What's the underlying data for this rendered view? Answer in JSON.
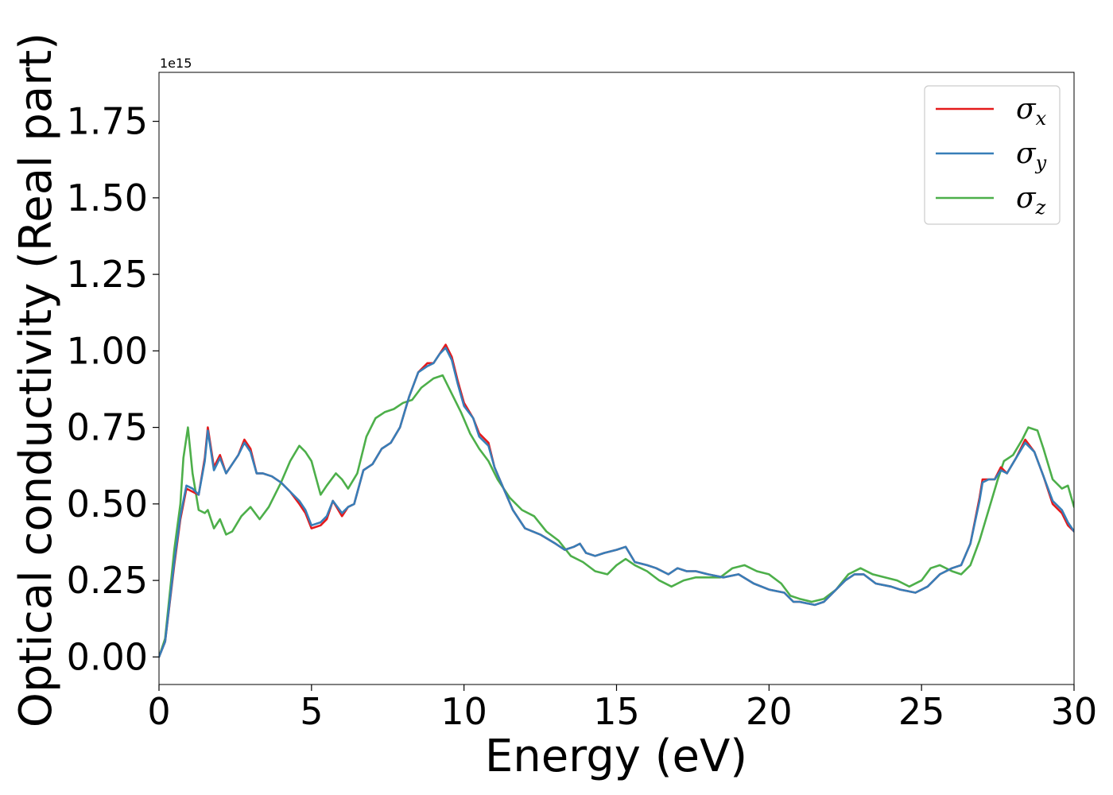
{
  "chart_data": {
    "type": "line",
    "xlabel": "Energy (eV)",
    "ylabel": "Optical conductivity (Real part)",
    "y_offset_text": "1e15",
    "y_scale": 1000000000000000.0,
    "xlim": [
      0,
      30
    ],
    "ylim": [
      -0.09,
      1.91
    ],
    "x_ticks": [
      0,
      5,
      10,
      15,
      20,
      25,
      30
    ],
    "x_tick_labels": [
      "0",
      "5",
      "10",
      "15",
      "20",
      "25",
      "30"
    ],
    "y_ticks": [
      0.0,
      0.25,
      0.5,
      0.75,
      1.0,
      1.25,
      1.5,
      1.75
    ],
    "y_tick_labels": [
      "0.00",
      "0.25",
      "0.50",
      "0.75",
      "1.00",
      "1.25",
      "1.50",
      "1.75"
    ],
    "grid": false,
    "legend_position": "top-right",
    "series": [
      {
        "name": "σx",
        "legend_main": "σ",
        "legend_sub": "x",
        "color": "#e41a1c",
        "points": [
          [
            0,
            0.0
          ],
          [
            0.2,
            0.05
          ],
          [
            0.5,
            0.3
          ],
          [
            0.7,
            0.45
          ],
          [
            0.9,
            0.55
          ],
          [
            1.1,
            0.54
          ],
          [
            1.3,
            0.53
          ],
          [
            1.5,
            0.65
          ],
          [
            1.6,
            0.75
          ],
          [
            1.8,
            0.62
          ],
          [
            2.0,
            0.66
          ],
          [
            2.2,
            0.6
          ],
          [
            2.4,
            0.63
          ],
          [
            2.6,
            0.66
          ],
          [
            2.8,
            0.71
          ],
          [
            3.0,
            0.68
          ],
          [
            3.2,
            0.6
          ],
          [
            3.4,
            0.6
          ],
          [
            3.7,
            0.59
          ],
          [
            4.0,
            0.57
          ],
          [
            4.3,
            0.54
          ],
          [
            4.6,
            0.5
          ],
          [
            4.8,
            0.47
          ],
          [
            5.0,
            0.42
          ],
          [
            5.3,
            0.43
          ],
          [
            5.5,
            0.45
          ],
          [
            5.7,
            0.51
          ],
          [
            6.0,
            0.46
          ],
          [
            6.2,
            0.49
          ],
          [
            6.4,
            0.5
          ],
          [
            6.7,
            0.61
          ],
          [
            7.0,
            0.63
          ],
          [
            7.3,
            0.68
          ],
          [
            7.6,
            0.7
          ],
          [
            7.9,
            0.75
          ],
          [
            8.2,
            0.85
          ],
          [
            8.5,
            0.93
          ],
          [
            8.8,
            0.96
          ],
          [
            9.0,
            0.96
          ],
          [
            9.2,
            0.99
          ],
          [
            9.4,
            1.02
          ],
          [
            9.6,
            0.98
          ],
          [
            9.8,
            0.9
          ],
          [
            10.0,
            0.83
          ],
          [
            10.3,
            0.78
          ],
          [
            10.5,
            0.73
          ],
          [
            10.8,
            0.7
          ],
          [
            11.0,
            0.62
          ],
          [
            11.3,
            0.55
          ],
          [
            11.6,
            0.48
          ],
          [
            12.0,
            0.42
          ],
          [
            12.5,
            0.4
          ],
          [
            13.0,
            0.37
          ],
          [
            13.3,
            0.35
          ],
          [
            13.6,
            0.36
          ],
          [
            13.8,
            0.37
          ],
          [
            14.0,
            0.34
          ],
          [
            14.3,
            0.33
          ],
          [
            14.6,
            0.34
          ],
          [
            15.0,
            0.35
          ],
          [
            15.3,
            0.36
          ],
          [
            15.6,
            0.31
          ],
          [
            16.0,
            0.3
          ],
          [
            16.3,
            0.29
          ],
          [
            16.7,
            0.27
          ],
          [
            17.0,
            0.29
          ],
          [
            17.3,
            0.28
          ],
          [
            17.6,
            0.28
          ],
          [
            18.0,
            0.27
          ],
          [
            18.5,
            0.26
          ],
          [
            19.0,
            0.27
          ],
          [
            19.5,
            0.24
          ],
          [
            20.0,
            0.22
          ],
          [
            20.5,
            0.21
          ],
          [
            20.8,
            0.18
          ],
          [
            21.0,
            0.18
          ],
          [
            21.5,
            0.17
          ],
          [
            21.8,
            0.18
          ],
          [
            22.2,
            0.22
          ],
          [
            22.5,
            0.25
          ],
          [
            22.8,
            0.27
          ],
          [
            23.1,
            0.27
          ],
          [
            23.5,
            0.24
          ],
          [
            24.0,
            0.23
          ],
          [
            24.3,
            0.22
          ],
          [
            24.8,
            0.21
          ],
          [
            25.2,
            0.23
          ],
          [
            25.6,
            0.27
          ],
          [
            26.0,
            0.29
          ],
          [
            26.3,
            0.3
          ],
          [
            26.6,
            0.37
          ],
          [
            26.9,
            0.52
          ],
          [
            27.0,
            0.58
          ],
          [
            27.2,
            0.58
          ],
          [
            27.4,
            0.58
          ],
          [
            27.6,
            0.62
          ],
          [
            27.8,
            0.6
          ],
          [
            28.1,
            0.65
          ],
          [
            28.4,
            0.71
          ],
          [
            28.7,
            0.67
          ],
          [
            29.0,
            0.59
          ],
          [
            29.3,
            0.5
          ],
          [
            29.6,
            0.47
          ],
          [
            29.8,
            0.43
          ],
          [
            30.0,
            0.41
          ]
        ]
      },
      {
        "name": "σy",
        "legend_main": "σ",
        "legend_sub": "y",
        "color": "#377eb8",
        "points": [
          [
            0,
            0.0
          ],
          [
            0.2,
            0.05
          ],
          [
            0.5,
            0.31
          ],
          [
            0.7,
            0.46
          ],
          [
            0.9,
            0.56
          ],
          [
            1.1,
            0.55
          ],
          [
            1.3,
            0.53
          ],
          [
            1.5,
            0.64
          ],
          [
            1.6,
            0.74
          ],
          [
            1.8,
            0.61
          ],
          [
            2.0,
            0.65
          ],
          [
            2.2,
            0.6
          ],
          [
            2.4,
            0.63
          ],
          [
            2.6,
            0.66
          ],
          [
            2.8,
            0.7
          ],
          [
            3.0,
            0.67
          ],
          [
            3.2,
            0.6
          ],
          [
            3.4,
            0.6
          ],
          [
            3.7,
            0.59
          ],
          [
            4.0,
            0.57
          ],
          [
            4.3,
            0.54
          ],
          [
            4.6,
            0.51
          ],
          [
            4.8,
            0.48
          ],
          [
            5.0,
            0.43
          ],
          [
            5.3,
            0.44
          ],
          [
            5.5,
            0.46
          ],
          [
            5.7,
            0.51
          ],
          [
            6.0,
            0.47
          ],
          [
            6.2,
            0.49
          ],
          [
            6.4,
            0.5
          ],
          [
            6.7,
            0.61
          ],
          [
            7.0,
            0.63
          ],
          [
            7.3,
            0.68
          ],
          [
            7.6,
            0.7
          ],
          [
            7.9,
            0.75
          ],
          [
            8.2,
            0.85
          ],
          [
            8.5,
            0.93
          ],
          [
            8.8,
            0.95
          ],
          [
            9.0,
            0.96
          ],
          [
            9.2,
            0.99
          ],
          [
            9.4,
            1.01
          ],
          [
            9.6,
            0.97
          ],
          [
            9.8,
            0.89
          ],
          [
            10.0,
            0.82
          ],
          [
            10.3,
            0.78
          ],
          [
            10.5,
            0.72
          ],
          [
            10.8,
            0.69
          ],
          [
            11.0,
            0.62
          ],
          [
            11.3,
            0.55
          ],
          [
            11.6,
            0.48
          ],
          [
            12.0,
            0.42
          ],
          [
            12.5,
            0.4
          ],
          [
            13.0,
            0.37
          ],
          [
            13.3,
            0.35
          ],
          [
            13.6,
            0.36
          ],
          [
            13.8,
            0.37
          ],
          [
            14.0,
            0.34
          ],
          [
            14.3,
            0.33
          ],
          [
            14.6,
            0.34
          ],
          [
            15.0,
            0.35
          ],
          [
            15.3,
            0.36
          ],
          [
            15.6,
            0.31
          ],
          [
            16.0,
            0.3
          ],
          [
            16.3,
            0.29
          ],
          [
            16.7,
            0.27
          ],
          [
            17.0,
            0.29
          ],
          [
            17.3,
            0.28
          ],
          [
            17.6,
            0.28
          ],
          [
            18.0,
            0.27
          ],
          [
            18.5,
            0.26
          ],
          [
            19.0,
            0.27
          ],
          [
            19.5,
            0.24
          ],
          [
            20.0,
            0.22
          ],
          [
            20.5,
            0.21
          ],
          [
            20.8,
            0.18
          ],
          [
            21.0,
            0.18
          ],
          [
            21.5,
            0.17
          ],
          [
            21.8,
            0.18
          ],
          [
            22.2,
            0.22
          ],
          [
            22.5,
            0.25
          ],
          [
            22.8,
            0.27
          ],
          [
            23.1,
            0.27
          ],
          [
            23.5,
            0.24
          ],
          [
            24.0,
            0.23
          ],
          [
            24.3,
            0.22
          ],
          [
            24.8,
            0.21
          ],
          [
            25.2,
            0.23
          ],
          [
            25.6,
            0.27
          ],
          [
            26.0,
            0.29
          ],
          [
            26.3,
            0.3
          ],
          [
            26.6,
            0.37
          ],
          [
            26.9,
            0.51
          ],
          [
            27.0,
            0.57
          ],
          [
            27.2,
            0.58
          ],
          [
            27.4,
            0.58
          ],
          [
            27.6,
            0.61
          ],
          [
            27.8,
            0.6
          ],
          [
            28.1,
            0.65
          ],
          [
            28.4,
            0.7
          ],
          [
            28.7,
            0.67
          ],
          [
            29.0,
            0.59
          ],
          [
            29.3,
            0.51
          ],
          [
            29.6,
            0.48
          ],
          [
            29.8,
            0.44
          ],
          [
            30.0,
            0.41
          ]
        ]
      },
      {
        "name": "σz",
        "legend_main": "σ",
        "legend_sub": "z",
        "color": "#4daf4a",
        "points": [
          [
            0,
            0.0
          ],
          [
            0.2,
            0.06
          ],
          [
            0.5,
            0.35
          ],
          [
            0.7,
            0.5
          ],
          [
            0.8,
            0.65
          ],
          [
            0.95,
            0.75
          ],
          [
            1.1,
            0.6
          ],
          [
            1.3,
            0.48
          ],
          [
            1.5,
            0.47
          ],
          [
            1.6,
            0.48
          ],
          [
            1.8,
            0.42
          ],
          [
            2.0,
            0.45
          ],
          [
            2.2,
            0.4
          ],
          [
            2.4,
            0.41
          ],
          [
            2.7,
            0.46
          ],
          [
            3.0,
            0.49
          ],
          [
            3.3,
            0.45
          ],
          [
            3.6,
            0.49
          ],
          [
            4.0,
            0.57
          ],
          [
            4.3,
            0.64
          ],
          [
            4.6,
            0.69
          ],
          [
            4.8,
            0.67
          ],
          [
            5.0,
            0.64
          ],
          [
            5.3,
            0.53
          ],
          [
            5.5,
            0.56
          ],
          [
            5.8,
            0.6
          ],
          [
            6.0,
            0.58
          ],
          [
            6.2,
            0.55
          ],
          [
            6.5,
            0.6
          ],
          [
            6.8,
            0.72
          ],
          [
            7.1,
            0.78
          ],
          [
            7.4,
            0.8
          ],
          [
            7.7,
            0.81
          ],
          [
            8.0,
            0.83
          ],
          [
            8.3,
            0.84
          ],
          [
            8.6,
            0.88
          ],
          [
            9.0,
            0.91
          ],
          [
            9.3,
            0.92
          ],
          [
            9.6,
            0.86
          ],
          [
            9.9,
            0.8
          ],
          [
            10.2,
            0.73
          ],
          [
            10.5,
            0.68
          ],
          [
            10.8,
            0.64
          ],
          [
            11.1,
            0.58
          ],
          [
            11.5,
            0.52
          ],
          [
            11.9,
            0.48
          ],
          [
            12.3,
            0.46
          ],
          [
            12.7,
            0.41
          ],
          [
            13.1,
            0.38
          ],
          [
            13.5,
            0.33
          ],
          [
            13.9,
            0.31
          ],
          [
            14.3,
            0.28
          ],
          [
            14.7,
            0.27
          ],
          [
            15.0,
            0.3
          ],
          [
            15.3,
            0.32
          ],
          [
            15.6,
            0.3
          ],
          [
            16.0,
            0.28
          ],
          [
            16.4,
            0.25
          ],
          [
            16.8,
            0.23
          ],
          [
            17.2,
            0.25
          ],
          [
            17.6,
            0.26
          ],
          [
            18.0,
            0.26
          ],
          [
            18.4,
            0.26
          ],
          [
            18.8,
            0.29
          ],
          [
            19.2,
            0.3
          ],
          [
            19.6,
            0.28
          ],
          [
            20.0,
            0.27
          ],
          [
            20.4,
            0.24
          ],
          [
            20.7,
            0.2
          ],
          [
            21.0,
            0.19
          ],
          [
            21.4,
            0.18
          ],
          [
            21.8,
            0.19
          ],
          [
            22.2,
            0.22
          ],
          [
            22.6,
            0.27
          ],
          [
            23.0,
            0.29
          ],
          [
            23.4,
            0.27
          ],
          [
            23.8,
            0.26
          ],
          [
            24.2,
            0.25
          ],
          [
            24.6,
            0.23
          ],
          [
            25.0,
            0.25
          ],
          [
            25.3,
            0.29
          ],
          [
            25.6,
            0.3
          ],
          [
            26.0,
            0.28
          ],
          [
            26.3,
            0.27
          ],
          [
            26.6,
            0.3
          ],
          [
            26.9,
            0.38
          ],
          [
            27.2,
            0.48
          ],
          [
            27.5,
            0.58
          ],
          [
            27.7,
            0.64
          ],
          [
            28.0,
            0.66
          ],
          [
            28.3,
            0.71
          ],
          [
            28.5,
            0.75
          ],
          [
            28.8,
            0.74
          ],
          [
            29.0,
            0.68
          ],
          [
            29.3,
            0.58
          ],
          [
            29.6,
            0.55
          ],
          [
            29.8,
            0.56
          ],
          [
            30.0,
            0.49
          ]
        ]
      }
    ]
  }
}
